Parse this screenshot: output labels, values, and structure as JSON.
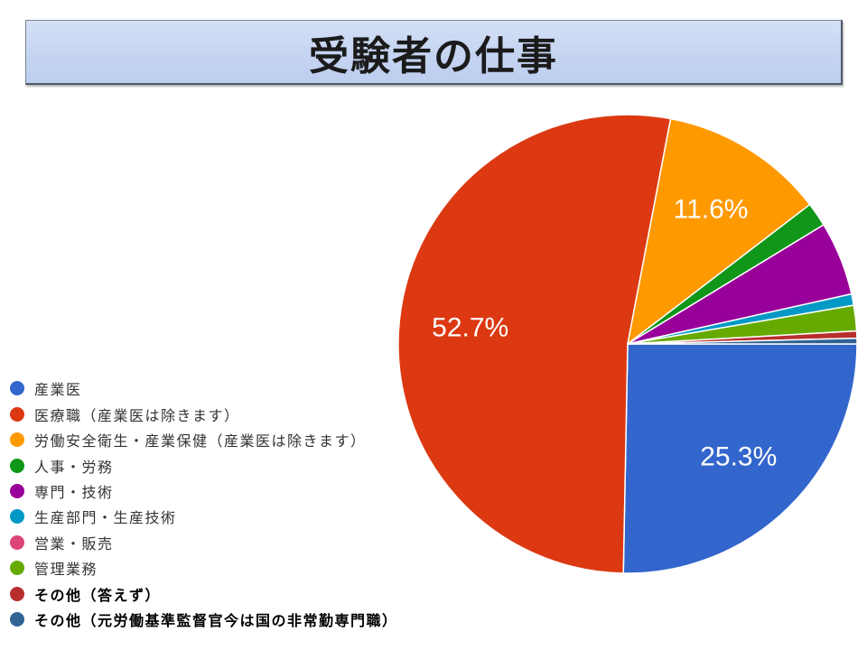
{
  "chart_data": {
    "type": "pie",
    "title": "受験者の仕事",
    "categories": [
      "産業医",
      "医療職（産業医は除きます）",
      "労働安全衛生・産業保健（産業医は除きます）",
      "人事・労務",
      "専門・技術",
      "生産部門・生産技術",
      "営業・販売",
      "管理業務",
      "その他（答えず）",
      "その他（元労働基準監督官今は国の非常勤専門職）"
    ],
    "values": [
      25.3,
      52.7,
      11.6,
      1.7,
      5.2,
      0.8,
      0,
      1.8,
      0.5,
      0.4
    ],
    "data_labels": [
      "25.3%",
      "52.7%",
      "11.6%",
      null,
      null,
      null,
      null,
      null,
      null,
      null
    ],
    "colors": [
      "#3366cc",
      "#dc3912",
      "#ff9900",
      "#109618",
      "#990099",
      "#0099c6",
      "#dd4477",
      "#66aa00",
      "#b82e2e",
      "#316395"
    ],
    "slice_border_color": "#ffffff",
    "data_label_color": "#ffffff",
    "legend_position": "bottom-left"
  }
}
